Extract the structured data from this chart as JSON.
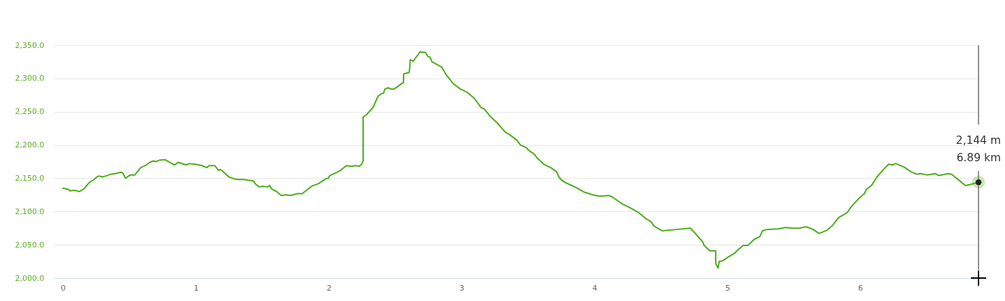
{
  "chart_data": {
    "type": "line",
    "x": [
      0,
      0.044,
      0.052,
      0.087,
      0.122,
      0.157,
      0.2,
      0.227,
      0.262,
      0.279,
      0.297,
      0.332,
      0.358,
      0.393,
      0.436,
      0.45,
      0.471,
      0.506,
      0.541,
      0.585,
      0.628,
      0.654,
      0.681,
      0.698,
      0.724,
      0.768,
      0.838,
      0.869,
      0.925,
      0.951,
      0.995,
      1.047,
      1.082,
      1.1,
      1.143,
      1.169,
      1.187,
      1.222,
      1.248,
      1.292,
      1.326,
      1.361,
      1.433,
      1.451,
      1.477,
      1.503,
      1.538,
      1.556,
      1.57,
      1.608,
      1.643,
      1.678,
      1.713,
      1.766,
      1.801,
      1.871,
      1.923,
      1.976,
      1.997,
      2.007,
      2.063,
      2.089,
      2.133,
      2.168,
      2.203,
      2.23,
      2.247,
      2.259,
      2.259,
      2.282,
      2.335,
      2.37,
      2.396,
      2.413,
      2.422,
      2.448,
      2.469,
      2.492,
      2.562,
      2.564,
      2.606,
      2.614,
      2.637,
      2.658,
      2.688,
      2.728,
      2.746,
      2.763,
      2.777,
      2.851,
      2.882,
      2.938,
      2.991,
      3.043,
      3.096,
      3.148,
      3.166,
      3.216,
      3.269,
      3.33,
      3.365,
      3.417,
      3.443,
      3.487,
      3.505,
      3.549,
      3.566,
      3.618,
      3.671,
      3.714,
      3.732,
      3.749,
      3.776,
      3.819,
      3.863,
      3.924,
      3.959,
      3.985,
      4.038,
      4.108,
      4.134,
      4.204,
      4.265,
      4.335,
      4.388,
      4.423,
      4.449,
      4.51,
      4.615,
      4.72,
      4.737,
      4.772,
      4.816,
      4.825,
      4.868,
      4.912,
      4.912,
      4.93,
      4.939,
      4.965,
      5.009,
      5.052,
      5.078,
      5.12,
      5.156,
      5.2,
      5.243,
      5.265,
      5.296,
      5.383,
      5.436,
      5.488,
      5.541,
      5.593,
      5.646,
      5.69,
      5.751,
      5.795,
      5.838,
      5.9,
      5.935,
      5.987,
      6.031,
      6.049,
      6.084,
      6.126,
      6.188,
      6.214,
      6.24,
      6.267,
      6.328,
      6.38,
      6.424,
      6.451,
      6.503,
      6.564,
      6.591,
      6.661,
      6.687,
      6.731,
      6.792,
      6.836,
      6.89
    ],
    "series": [
      {
        "color": "#4dac1b",
        "values": [
          2135,
          2133,
          2131,
          2132,
          2130,
          2134,
          2144,
          2147,
          2153,
          2153,
          2152,
          2154,
          2156,
          2157,
          2159,
          2158,
          2150,
          2155,
          2155,
          2166,
          2170,
          2174,
          2176,
          2175,
          2177,
          2178,
          2170,
          2174,
          2170,
          2172,
          2171,
          2169,
          2166,
          2169,
          2169,
          2162,
          2163,
          2157,
          2152,
          2149,
          2148,
          2148,
          2146,
          2141,
          2137,
          2138,
          2137,
          2139,
          2134,
          2130,
          2124,
          2125,
          2124,
          2127,
          2127,
          2138,
          2142,
          2149,
          2150,
          2154,
          2159,
          2162,
          2169,
          2168,
          2169,
          2168,
          2171,
          2176,
          2242,
          2245,
          2257,
          2273,
          2277,
          2278,
          2284,
          2286,
          2284,
          2284,
          2294,
          2307,
          2309,
          2328,
          2326,
          2332,
          2340,
          2339,
          2333,
          2332,
          2325,
          2317,
          2306,
          2292,
          2284,
          2279,
          2270,
          2256,
          2255,
          2243,
          2233,
          2219,
          2215,
          2207,
          2200,
          2196,
          2192,
          2186,
          2181,
          2171,
          2166,
          2160,
          2152,
          2148,
          2144,
          2140,
          2136,
          2129,
          2127,
          2125,
          2123,
          2124,
          2122,
          2112,
          2106,
          2098,
          2089,
          2085,
          2078,
          2071,
          2073,
          2075,
          2072,
          2064,
          2054,
          2049,
          2041,
          2041,
          2022,
          2015,
          2025,
          2026,
          2032,
          2037,
          2042,
          2049,
          2049,
          2058,
          2062,
          2071,
          2073,
          2074,
          2076,
          2075,
          2075,
          2077,
          2073,
          2067,
          2072,
          2080,
          2091,
          2098,
          2108,
          2119,
          2127,
          2134,
          2139,
          2152,
          2166,
          2171,
          2170,
          2172,
          2167,
          2160,
          2156,
          2157,
          2155,
          2157,
          2154,
          2157,
          2156,
          2149,
          2139,
          2141,
          2144
        ]
      }
    ],
    "xlim": [
      -0.07,
      6.89
    ],
    "ylim": [
      2000,
      2350
    ],
    "xticks": [
      0,
      1,
      2,
      3,
      4,
      5,
      6
    ],
    "yticks": [
      {
        "value": 2000,
        "label": "2,000.0"
      },
      {
        "value": 2050,
        "label": "2,050.0"
      },
      {
        "value": 2100,
        "label": "2,100.0"
      },
      {
        "value": 2150,
        "label": "2,150.0"
      },
      {
        "value": 2200,
        "label": "2,200.0"
      },
      {
        "value": 2250,
        "label": "2,250.0"
      },
      {
        "value": 2300,
        "label": "2,300.0"
      },
      {
        "value": 2350,
        "label": "2,350.0"
      }
    ],
    "grid": "y",
    "ref_lines": [
      {
        "axis": "x",
        "value": 6.89,
        "color": "#222222"
      }
    ],
    "annotations": [
      {
        "text": "2,144 m\n6.89 km",
        "x": 6.89,
        "y": 2144
      }
    ]
  }
}
